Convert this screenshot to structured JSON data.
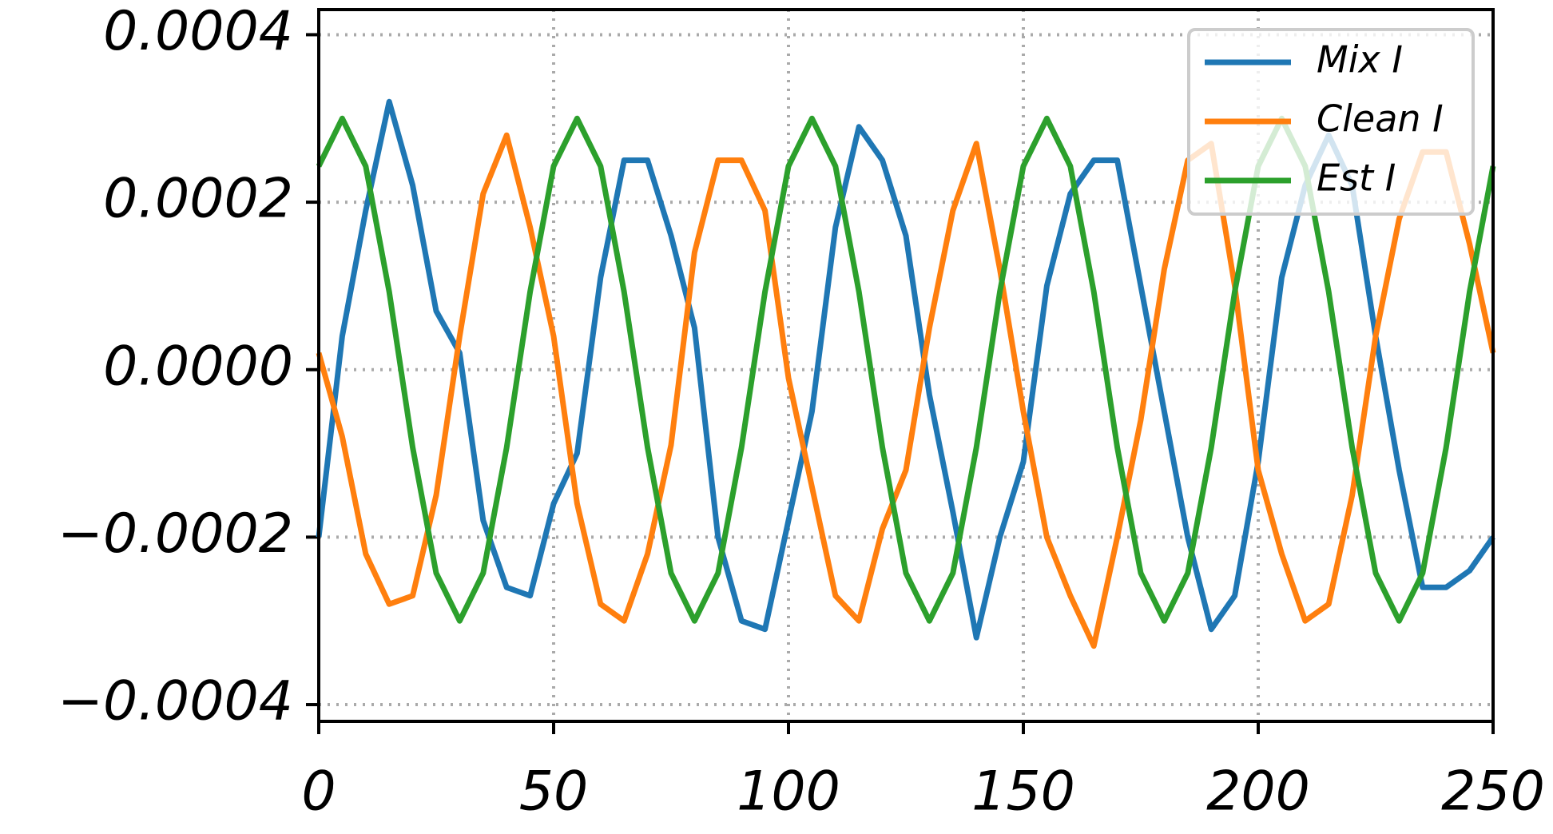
{
  "chart_data": {
    "type": "line",
    "x": [
      0,
      5,
      10,
      15,
      20,
      25,
      30,
      35,
      40,
      45,
      50,
      55,
      60,
      65,
      70,
      75,
      80,
      85,
      90,
      95,
      100,
      105,
      110,
      115,
      120,
      125,
      130,
      135,
      140,
      145,
      150,
      155,
      160,
      165,
      170,
      175,
      180,
      185,
      190,
      195,
      200,
      205,
      210,
      215,
      220,
      225,
      230,
      235,
      240,
      245,
      250
    ],
    "series": [
      {
        "name": "Mix I",
        "color": "#1f77b4",
        "values": [
          -0.0002,
          4e-05,
          0.00019,
          0.00032,
          0.00022,
          7e-05,
          2e-05,
          -0.00018,
          -0.00026,
          -0.00027,
          -0.00016,
          -0.0001,
          0.00011,
          0.00025,
          0.00025,
          0.00016,
          5e-05,
          -0.0002,
          -0.0003,
          -0.00031,
          -0.00018,
          -5e-05,
          0.00017,
          0.00029,
          0.00025,
          0.00016,
          -3e-05,
          -0.00017,
          -0.00032,
          -0.0002,
          -0.00011,
          0.0001,
          0.00021,
          0.00025,
          0.00025,
          0.0001,
          -5e-05,
          -0.0002,
          -0.00031,
          -0.00027,
          -0.00011,
          0.00011,
          0.00022,
          0.00028,
          0.00022,
          4e-05,
          -0.00012,
          -0.00026,
          -0.00026,
          -0.00024,
          -0.0002
        ]
      },
      {
        "name": "Clean I",
        "color": "#ff7f0e",
        "values": [
          2e-05,
          -8e-05,
          -0.00022,
          -0.00028,
          -0.00027,
          -0.00015,
          4e-05,
          0.00021,
          0.00028,
          0.00017,
          4e-05,
          -0.00016,
          -0.00028,
          -0.0003,
          -0.00022,
          -9e-05,
          0.00014,
          0.00025,
          0.00025,
          0.00019,
          -1e-05,
          -0.00014,
          -0.00027,
          -0.0003,
          -0.00019,
          -0.00012,
          5e-05,
          0.00019,
          0.00027,
          0.00012,
          -5e-05,
          -0.0002,
          -0.00027,
          -0.00033,
          -0.0002,
          -6e-05,
          0.00012,
          0.00025,
          0.00027,
          0.0001,
          -0.00012,
          -0.00022,
          -0.0003,
          -0.00028,
          -0.00015,
          4e-05,
          0.00018,
          0.00026,
          0.00026,
          0.00015,
          2e-05
        ]
      },
      {
        "name": "Est I",
        "color": "#2ca02c",
        "values": [
          0.000243,
          0.0003,
          0.000243,
          9.3e-05,
          -9.3e-05,
          -0.000243,
          -0.0003,
          -0.000243,
          -9.3e-05,
          9.3e-05,
          0.000243,
          0.0003,
          0.000243,
          9.3e-05,
          -9.3e-05,
          -0.000243,
          -0.0003,
          -0.000243,
          -9.3e-05,
          9.3e-05,
          0.000243,
          0.0003,
          0.000243,
          9.3e-05,
          -9.3e-05,
          -0.000243,
          -0.0003,
          -0.000243,
          -9.3e-05,
          9.3e-05,
          0.000243,
          0.0003,
          0.000243,
          9.3e-05,
          -9.3e-05,
          -0.000243,
          -0.0003,
          -0.000243,
          -9.3e-05,
          9.3e-05,
          0.000243,
          0.0003,
          0.000243,
          9.3e-05,
          -9.3e-05,
          -0.000243,
          -0.0003,
          -0.000243,
          -9.3e-05,
          9.3e-05,
          0.000243
        ]
      }
    ],
    "xlim": [
      0,
      250
    ],
    "xticks": [
      0,
      50,
      100,
      150,
      200,
      250
    ],
    "ylim": [
      -0.00042,
      0.00043
    ],
    "yticks": [
      {
        "value": -0.0004,
        "label": "−0.0004"
      },
      {
        "value": -0.0002,
        "label": "−0.0002"
      },
      {
        "value": 0,
        "label": "0.0000"
      },
      {
        "value": 0.0002,
        "label": "0.0002"
      },
      {
        "value": 0.0004,
        "label": "0.0004"
      }
    ],
    "grid": true,
    "legend": "upper right"
  }
}
